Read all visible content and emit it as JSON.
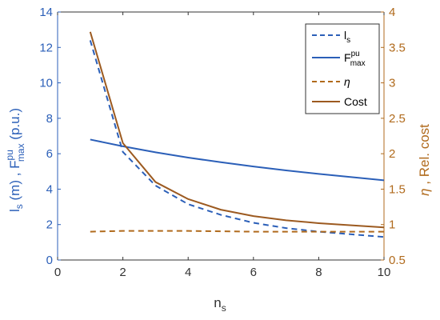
{
  "chart_data": {
    "type": "line",
    "x": [
      1,
      2,
      3,
      4,
      5,
      6,
      7,
      8,
      9,
      10
    ],
    "xlabel": {
      "main": "n",
      "sub": "s"
    },
    "xlim": [
      0,
      10
    ],
    "xticks": [
      0,
      2,
      4,
      6,
      8,
      10
    ],
    "ylabel_left": {
      "base": "l",
      "sub1": "s",
      "mid": " (m) , F",
      "sup": "pu",
      "sub2": "max",
      "tail": " (p.u.)"
    },
    "ylim_left": [
      0,
      14
    ],
    "yticks_left": [
      0,
      2,
      4,
      6,
      8,
      10,
      12,
      14
    ],
    "ylabel_right": {
      "greek": "η",
      "tail": " , Rel. cost"
    },
    "ylim_right": [
      0.5,
      4
    ],
    "yticks_right": [
      0.5,
      1,
      1.5,
      2,
      2.5,
      3,
      3.5,
      4
    ],
    "colors": {
      "left_axis": "#2b5fb8",
      "right_axis": "#b06a1c"
    },
    "legend_position": "top-right",
    "grid": false,
    "series": [
      {
        "name": "l_s",
        "legend": {
          "base": "l",
          "sub": "s"
        },
        "axis": "left",
        "style": "dashed",
        "color": "#2b5fb8",
        "values": [
          12.4,
          6.1,
          4.2,
          3.15,
          2.55,
          2.1,
          1.8,
          1.6,
          1.45,
          1.3
        ]
      },
      {
        "name": "F_max^pu",
        "legend": {
          "base": "F",
          "sup": "pu",
          "sub": "max"
        },
        "axis": "left",
        "style": "solid",
        "color": "#2b5fb8",
        "values": [
          6.8,
          6.42,
          6.08,
          5.78,
          5.52,
          5.28,
          5.06,
          4.86,
          4.68,
          4.5
        ]
      },
      {
        "name": "eta",
        "legend": {
          "greek": "η"
        },
        "axis": "right",
        "style": "dashed",
        "color": "#b06a1c",
        "values": [
          0.9,
          0.91,
          0.91,
          0.91,
          0.905,
          0.9,
          0.9,
          0.9,
          0.9,
          0.9
        ]
      },
      {
        "name": "Cost",
        "legend": {
          "text": "Cost"
        },
        "axis": "right",
        "style": "solid",
        "color": "#9c5a20",
        "values": [
          3.72,
          2.15,
          1.6,
          1.36,
          1.21,
          1.12,
          1.06,
          1.02,
          0.99,
          0.96
        ]
      }
    ]
  }
}
